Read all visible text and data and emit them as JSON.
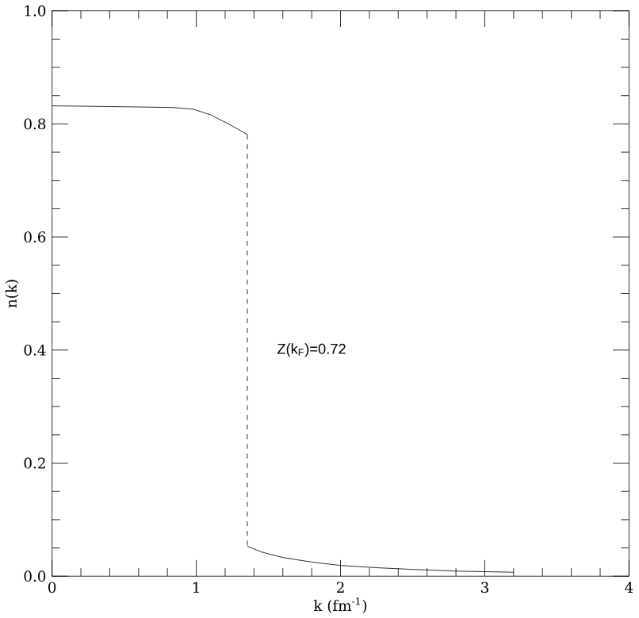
{
  "chart_data": {
    "type": "line",
    "xlabel": "k (fm$^{-1}$)",
    "ylabel": "n(k)",
    "annotations": [
      "Z(k$_{F}$)=0.72"
    ],
    "series": [
      {
        "color": "#000000",
        "line_style": "solid",
        "x": [
          0,
          0.3,
          0.6,
          0.84,
          0.98,
          1.1,
          1.2,
          1.28,
          1.354
        ],
        "values": [
          0.832,
          0.831,
          0.83,
          0.829,
          0.826,
          0.816,
          0.803,
          0.792,
          0.781
        ]
      },
      {
        "color": "#000000",
        "line_style": "dashed",
        "x": [
          1.354,
          1.354
        ],
        "values": [
          0.781,
          0.053
        ]
      },
      {
        "color": "#000000",
        "line_style": "solid",
        "x": [
          1.354,
          1.45,
          1.6,
          1.8,
          2.0,
          2.25,
          2.5,
          2.8,
          3.2
        ],
        "values": [
          0.053,
          0.043,
          0.033,
          0.025,
          0.019,
          0.015,
          0.012,
          0.009,
          0.007
        ]
      }
    ],
    "xlim": [
      0,
      4
    ],
    "ylim": [
      0,
      1.0
    ],
    "xticks": [
      0,
      1,
      2,
      3,
      4
    ],
    "yticks": [
      {
        "value": 0,
        "label": "0.0"
      },
      0.2,
      0.4,
      0.6,
      0.8,
      {
        "value": 1.0,
        "label": "1.0"
      }
    ],
    "grid": false,
    "marker": "none"
  }
}
